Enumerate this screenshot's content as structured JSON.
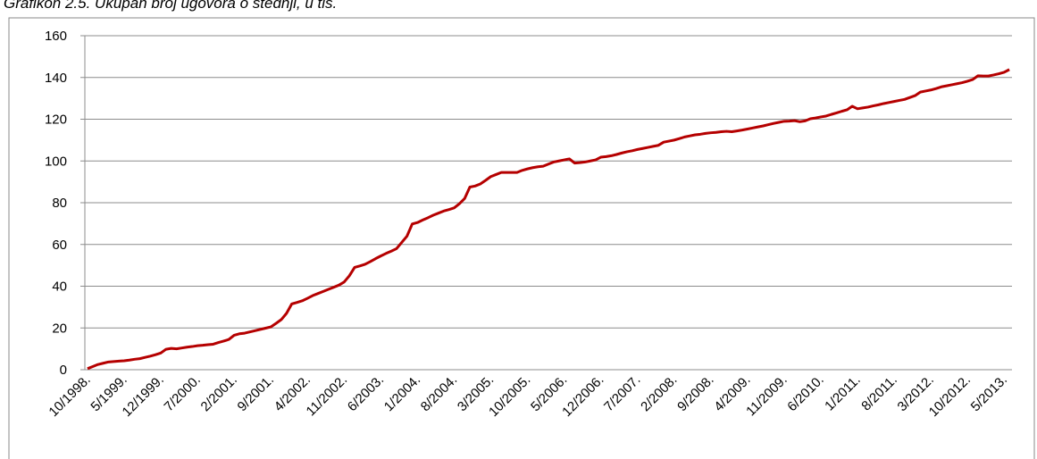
{
  "chart_data": {
    "type": "line",
    "title": "Grafikon 2.5. Ukupan broj ugovora o štednji, u tis.",
    "categories": [
      "10/1998.",
      null,
      null,
      null,
      null,
      null,
      null,
      "5/1999.",
      null,
      null,
      null,
      null,
      null,
      null,
      "12/1999.",
      null,
      null,
      null,
      null,
      null,
      null,
      "7/2000.",
      null,
      null,
      null,
      null,
      null,
      null,
      "2/2001.",
      null,
      null,
      null,
      null,
      null,
      null,
      "9/2001.",
      null,
      null,
      null,
      null,
      null,
      null,
      "4/2002.",
      null,
      null,
      null,
      null,
      null,
      null,
      "11/2002.",
      null,
      null,
      null,
      null,
      null,
      null,
      "6/2003.",
      null,
      null,
      null,
      null,
      null,
      null,
      "1/2004.",
      null,
      null,
      null,
      null,
      null,
      null,
      "8/2004.",
      null,
      null,
      null,
      null,
      null,
      null,
      "3/2005.",
      null,
      null,
      null,
      null,
      null,
      null,
      "10/2005.",
      null,
      null,
      null,
      null,
      null,
      null,
      "5/2006.",
      null,
      null,
      null,
      null,
      null,
      null,
      "12/2006.",
      null,
      null,
      null,
      null,
      null,
      null,
      "7/2007.",
      null,
      null,
      null,
      null,
      null,
      null,
      "2/2008.",
      null,
      null,
      null,
      null,
      null,
      null,
      "9/2008.",
      null,
      null,
      null,
      null,
      null,
      null,
      "4/2009.",
      null,
      null,
      null,
      null,
      null,
      null,
      "11/2009.",
      null,
      null,
      null,
      null,
      null,
      null,
      "6/2010.",
      null,
      null,
      null,
      null,
      null,
      null,
      "1/2011.",
      null,
      null,
      null,
      null,
      null,
      null,
      "8/2011.",
      null,
      null,
      null,
      null,
      null,
      null,
      "3/2012.",
      null,
      null,
      null,
      null,
      null,
      null,
      "10/2012.",
      null,
      null,
      null,
      null,
      null,
      null,
      "5/2013.",
      null
    ],
    "series": [
      {
        "color": "#b50000",
        "values": [
          0.5,
          1.5,
          2.5,
          3.1,
          3.7,
          3.9,
          4.1,
          4.3,
          4.6,
          5.0,
          5.3,
          5.9,
          6.5,
          7.2,
          8.0,
          9.8,
          10.2,
          10.0,
          10.4,
          10.8,
          11.1,
          11.5,
          11.7,
          12.0,
          12.2,
          13.0,
          13.7,
          14.5,
          16.5,
          17.2,
          17.5,
          18.1,
          18.7,
          19.3,
          19.9,
          20.5,
          22.2,
          24.0,
          27.0,
          31.5,
          32.2,
          33.0,
          34.2,
          35.5,
          36.5,
          37.5,
          38.5,
          39.5,
          40.5,
          42.0,
          45.0,
          49.0,
          49.7,
          50.5,
          51.8,
          53.2,
          54.5,
          55.7,
          56.8,
          58.0,
          61.0,
          64.0,
          69.8,
          70.5,
          71.7,
          72.8,
          74.0,
          75.0,
          76.0,
          76.7,
          77.5,
          79.5,
          82.0,
          87.5,
          88.0,
          89.0,
          90.7,
          92.5,
          93.5,
          94.5,
          94.5,
          94.5,
          94.5,
          95.5,
          96.2,
          96.8,
          97.2,
          97.5,
          98.5,
          99.5,
          100.0,
          100.5,
          101.0,
          99.0,
          99.2,
          99.5,
          100.0,
          100.5,
          101.8,
          102.1,
          102.5,
          103.1,
          103.8,
          104.4,
          104.9,
          105.5,
          106.0,
          106.5,
          107.0,
          107.5,
          109.0,
          109.5,
          110.0,
          110.7,
          111.5,
          112.0,
          112.5,
          112.8,
          113.2,
          113.5,
          113.7,
          114.0,
          114.2,
          114.0,
          114.4,
          114.8,
          115.3,
          115.8,
          116.3,
          116.8,
          117.4,
          118.0,
          118.5,
          119.0,
          119.1,
          119.3,
          118.8,
          119.2,
          120.2,
          120.6,
          121.1,
          121.5,
          122.3,
          123.0,
          123.8,
          124.5,
          126.2,
          125.0,
          125.4,
          125.8,
          126.4,
          126.9,
          127.5,
          128.0,
          128.5,
          129.0,
          129.5,
          130.4,
          131.3,
          133.0,
          133.5,
          134.0,
          134.7,
          135.5,
          136.0,
          136.5,
          137.0,
          137.5,
          138.2,
          139.0,
          140.8,
          140.7,
          140.7,
          141.2,
          141.8,
          142.5,
          143.8
        ]
      }
    ],
    "ylim": [
      0,
      160
    ],
    "yticks": [
      0,
      20,
      40,
      60,
      80,
      100,
      120,
      140,
      160
    ],
    "grid": true
  }
}
